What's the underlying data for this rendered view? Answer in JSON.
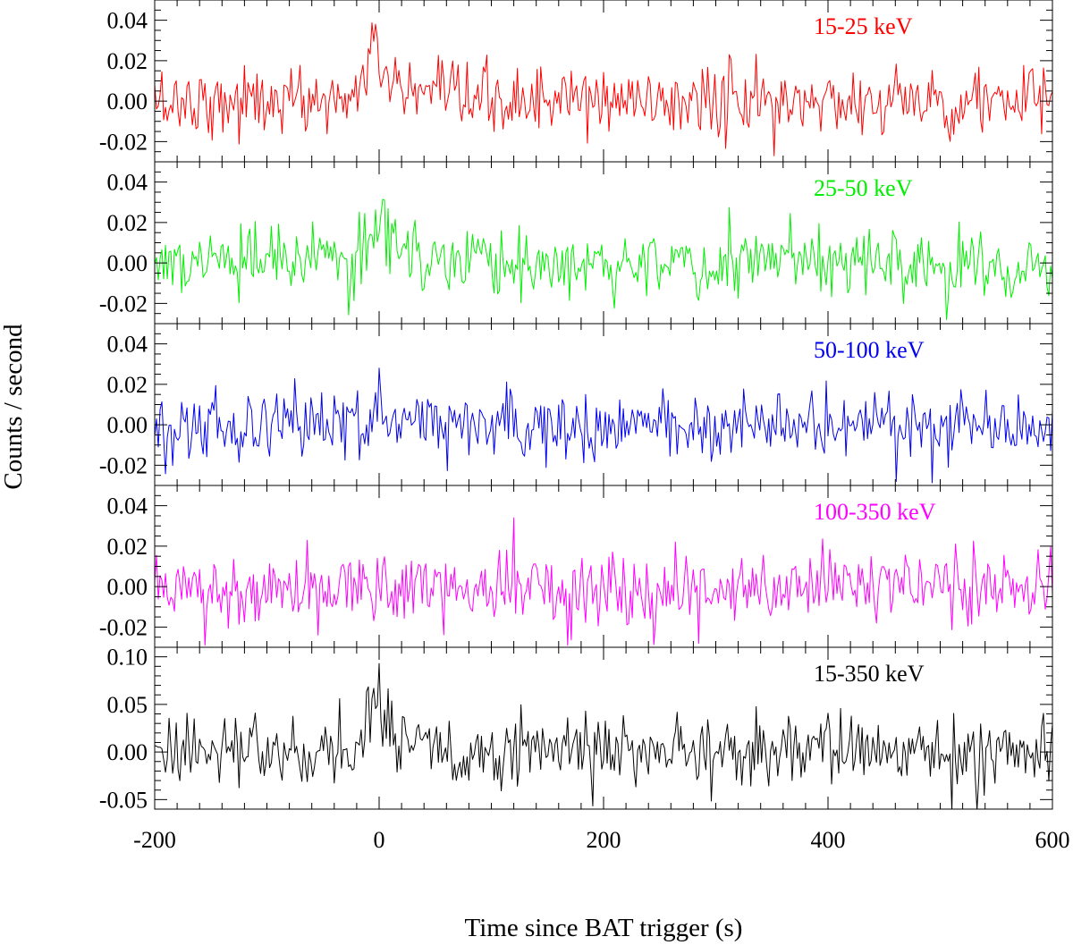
{
  "chart_data": {
    "type": "line",
    "title": "",
    "xlabel": "Time since BAT trigger (s)",
    "ylabel": "Counts / second",
    "xlim": [
      -200,
      600
    ],
    "xticks": [
      "-200",
      "0",
      "200",
      "400",
      "600"
    ],
    "bin_seconds": 1.6,
    "grid": false,
    "legend": "none",
    "panels": [
      {
        "name": "15-25 keV",
        "label": "15-25 keV",
        "color": "#ff0000",
        "ylim": [
          -0.03,
          0.05
        ],
        "yticks": [
          "0.04",
          "0.02",
          "0.00",
          "-0.02"
        ],
        "noise_sigma": 0.0085,
        "pulse": {
          "peak_time": 0,
          "amplitude": 0.022,
          "rise_s": 18,
          "decay_s": 14
        },
        "extremes": [
          [
            -4,
            0.038
          ],
          [
            352,
            -0.027
          ]
        ]
      },
      {
        "name": "25-50 keV",
        "label": "25-50 keV",
        "color": "#00ee00",
        "ylim": [
          -0.03,
          0.05
        ],
        "yticks": [
          "0.04",
          "0.02",
          "0.00",
          "-0.02"
        ],
        "noise_sigma": 0.0085,
        "pulse": {
          "peak_time": 5,
          "amplitude": 0.019,
          "rise_s": 18,
          "decay_s": 16
        },
        "extremes": [
          [
            5,
            0.031
          ],
          [
            505,
            -0.028
          ]
        ]
      },
      {
        "name": "50-100 keV",
        "label": "50-100 keV",
        "color": "#0000ee",
        "ylim": [
          -0.03,
          0.05
        ],
        "yticks": [
          "0.04",
          "0.02",
          "0.00",
          "-0.02"
        ],
        "noise_sigma": 0.0085,
        "pulse": {
          "peak_time": 0,
          "amplitude": 0.006,
          "rise_s": 6,
          "decay_s": 6
        },
        "extremes": [
          [
            0,
            0.028
          ],
          [
            460,
            -0.028
          ]
        ]
      },
      {
        "name": "100-350 keV",
        "label": "100-350 keV",
        "color": "#ff00ff",
        "ylim": [
          -0.03,
          0.05
        ],
        "yticks": [
          "0.04",
          "0.02",
          "0.00",
          "-0.02"
        ],
        "noise_sigma": 0.009,
        "pulse": {
          "peak_time": 0,
          "amplitude": 0.0,
          "rise_s": 1,
          "decay_s": 1
        },
        "extremes": [
          [
            120,
            0.034
          ],
          [
            -155,
            -0.029
          ],
          [
            168,
            -0.029
          ],
          [
            285,
            -0.028
          ]
        ]
      },
      {
        "name": "15-350 keV",
        "label": "15-350 keV",
        "color": "#000000",
        "ylim": [
          -0.06,
          0.11
        ],
        "yticks": [
          "0.10",
          "0.05",
          "0.00",
          "-0.05"
        ],
        "noise_sigma": 0.019,
        "pulse": {
          "peak_time": 0,
          "amplitude": 0.055,
          "rise_s": 18,
          "decay_s": 14
        },
        "extremes": [
          [
            0,
            0.093
          ],
          [
            510,
            -0.062
          ]
        ]
      }
    ]
  }
}
